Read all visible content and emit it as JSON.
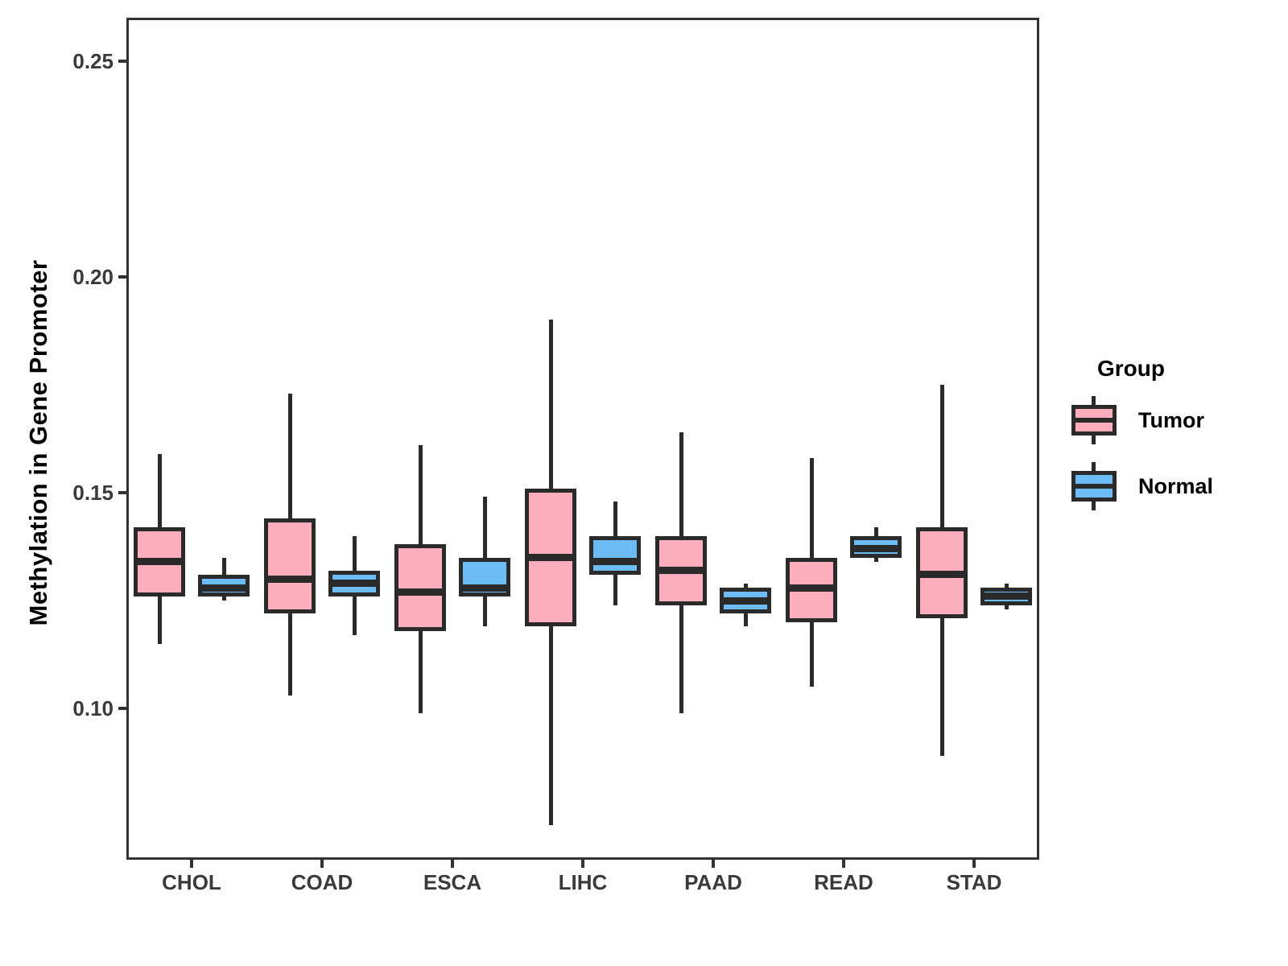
{
  "figure": {
    "background": "#ffffff"
  },
  "y_axis": {
    "title": "Methylation in Gene Promoter",
    "tick_labels": [
      "0.25",
      "0.20",
      "0.15",
      "0.10"
    ],
    "tick_values": [
      0.25,
      0.2,
      0.15,
      0.1
    ]
  },
  "x_axis": {
    "categories": [
      "CHOL",
      "COAD",
      "ESCA",
      "LIHC",
      "PAAD",
      "READ",
      "STAD"
    ]
  },
  "legend": {
    "title": "Group",
    "items": [
      {
        "label": "Tumor",
        "color": "#FCAEBC"
      },
      {
        "label": "Normal",
        "color": "#6EBCF5"
      }
    ]
  },
  "chart_data": {
    "type": "boxplot",
    "title": "",
    "xlabel": "",
    "ylabel": "Methylation in Gene Promoter",
    "categories": [
      "CHOL",
      "COAD",
      "ESCA",
      "LIHC",
      "PAAD",
      "READ",
      "STAD"
    ],
    "ylim": [
      0.065,
      0.26
    ],
    "yticks": [
      0.1,
      0.15,
      0.2,
      0.25
    ],
    "grid": false,
    "legend_position": "right",
    "box_border_color": "#2a2a2a",
    "series": [
      {
        "name": "Tumor",
        "color": "#FCAEBC",
        "boxes": [
          {
            "low": 0.115,
            "q1": 0.126,
            "median": 0.134,
            "q3": 0.142,
            "high": 0.159
          },
          {
            "low": 0.103,
            "q1": 0.122,
            "median": 0.13,
            "q3": 0.144,
            "high": 0.173
          },
          {
            "low": 0.099,
            "q1": 0.118,
            "median": 0.127,
            "q3": 0.138,
            "high": 0.161
          },
          {
            "low": 0.073,
            "q1": 0.119,
            "median": 0.135,
            "q3": 0.151,
            "high": 0.19
          },
          {
            "low": 0.099,
            "q1": 0.124,
            "median": 0.132,
            "q3": 0.14,
            "high": 0.164
          },
          {
            "low": 0.105,
            "q1": 0.12,
            "median": 0.128,
            "q3": 0.135,
            "high": 0.158
          },
          {
            "low": 0.089,
            "q1": 0.121,
            "median": 0.131,
            "q3": 0.142,
            "high": 0.175
          }
        ]
      },
      {
        "name": "Normal",
        "color": "#6EBCF5",
        "boxes": [
          {
            "low": 0.125,
            "q1": 0.126,
            "median": 0.128,
            "q3": 0.131,
            "high": 0.135
          },
          {
            "low": 0.117,
            "q1": 0.126,
            "median": 0.129,
            "q3": 0.132,
            "high": 0.14
          },
          {
            "low": 0.119,
            "q1": 0.126,
            "median": 0.128,
            "q3": 0.135,
            "high": 0.149
          },
          {
            "low": 0.124,
            "q1": 0.131,
            "median": 0.134,
            "q3": 0.14,
            "high": 0.148
          },
          {
            "low": 0.119,
            "q1": 0.122,
            "median": 0.125,
            "q3": 0.128,
            "high": 0.129
          },
          {
            "low": 0.134,
            "q1": 0.135,
            "median": 0.137,
            "q3": 0.14,
            "high": 0.142
          },
          {
            "low": 0.123,
            "q1": 0.124,
            "median": 0.126,
            "q3": 0.128,
            "high": 0.129
          }
        ]
      }
    ]
  }
}
